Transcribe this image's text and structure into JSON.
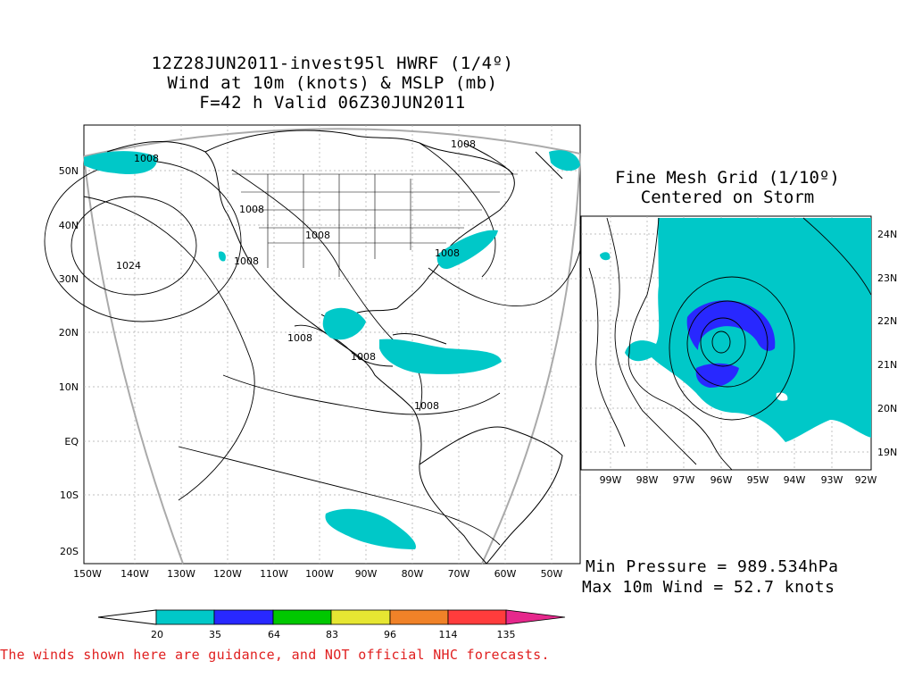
{
  "main_map": {
    "title_lines": [
      "12Z28JUN2011-invest95l HWRF (1/4º)",
      "Wind at 10m (knots) & MSLP (mb)",
      "F=42 h Valid 06Z30JUN2011"
    ],
    "lat_ticks": [
      "50N",
      "40N",
      "30N",
      "20N",
      "10N",
      "EQ",
      "10S",
      "20S"
    ],
    "lon_ticks": [
      "150W",
      "140W",
      "130W",
      "120W",
      "110W",
      "100W",
      "90W",
      "80W",
      "70W",
      "60W",
      "50W"
    ],
    "contour_labels": [
      "1008",
      "1008",
      "1008",
      "1008",
      "1008",
      "1008",
      "1008",
      "1008",
      "1008",
      "1024"
    ]
  },
  "fine_mesh": {
    "title_lines": [
      "Fine Mesh Grid (1/10º)",
      "Centered on Storm"
    ],
    "lat_ticks": [
      "24N",
      "23N",
      "22N",
      "21N",
      "20N",
      "19N"
    ],
    "lon_ticks": [
      "99W",
      "98W",
      "97W",
      "96W",
      "95W",
      "94W",
      "93W",
      "92W"
    ]
  },
  "stats": {
    "min_pressure": "Min Pressure = 989.534hPa",
    "max_wind": "Max 10m Wind = 52.7 knots"
  },
  "colorbar": {
    "labels": [
      "20",
      "35",
      "64",
      "83",
      "96",
      "114",
      "135"
    ],
    "colors": [
      "#00c8c8",
      "#2828ff",
      "#00c800",
      "#e6e632",
      "#f08228",
      "#ff3c3c",
      "#e6288c"
    ]
  },
  "disclaimer": "The winds shown here are guidance, and NOT official NHC forecasts."
}
